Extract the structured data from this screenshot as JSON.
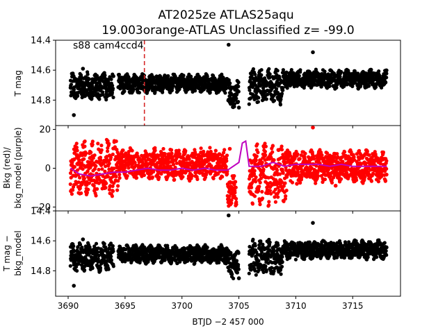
{
  "figure": {
    "title_line1": "AT2025ze  ATLAS25aqu",
    "title_line2": "19.003orange-ATLAS Unclassified z= -99.0"
  },
  "chart_data": [
    {
      "type": "scatter",
      "panel": "top",
      "ylabel": "T mag",
      "annotation": "s88 cam4ccd4",
      "ylim": [
        14.97,
        14.4
      ],
      "y_inverted": true,
      "yticks": [
        "14.4",
        "14.6",
        "14.8"
      ],
      "ytick_values": [
        14.4,
        14.6,
        14.8
      ],
      "marker_color": "#000000",
      "vline": {
        "x": 3696.7,
        "color": "#d62728",
        "style": "dashed"
      },
      "bands": [
        {
          "x0": 3690.2,
          "x1": 3694.0,
          "center": 14.71,
          "spread": 0.09
        },
        {
          "x0": 3694.4,
          "x1": 3704.0,
          "center": 14.69,
          "spread": 0.06
        },
        {
          "x0": 3704.0,
          "x1": 3705.0,
          "center": 14.76,
          "spread": 0.09
        },
        {
          "x0": 3705.9,
          "x1": 3708.9,
          "center": 14.71,
          "spread": 0.11
        },
        {
          "x0": 3708.9,
          "x1": 3718.0,
          "center": 14.66,
          "spread": 0.06
        }
      ],
      "outliers": [
        [
          3690.5,
          14.9
        ],
        [
          3691.3,
          14.59
        ],
        [
          3704.1,
          14.43
        ],
        [
          3711.5,
          14.48
        ],
        [
          3705.0,
          14.85
        ]
      ]
    },
    {
      "type": "scatter",
      "panel": "middle",
      "ylabel": "Bkg (red)/ bkg_model (purple)",
      "ylabel_line1": "Bkg (red)/",
      "ylabel_line2": "bkg_model (purple)",
      "ylim": [
        -22,
        22
      ],
      "yticks": [
        "−20",
        "0",
        "20"
      ],
      "ytick_values": [
        -20,
        0,
        20
      ],
      "marker_color": "#ff0000",
      "model_color": "#bf00bf",
      "bkg_model": {
        "x": [
          3690.2,
          3691,
          3692,
          3693,
          3694,
          3695,
          3696,
          3697,
          3698,
          3699,
          3700,
          3701,
          3702,
          3703,
          3704,
          3705,
          3705.3,
          3705.6,
          3705.9,
          3706.2,
          3707,
          3708,
          3709,
          3710,
          3711,
          3712,
          3713,
          3714,
          3715,
          3716,
          3717,
          3718
        ],
        "y": [
          0,
          -3,
          -4,
          -3,
          -2,
          -2,
          -1,
          0,
          -1,
          -1,
          0,
          -1,
          0,
          -1,
          -1,
          3,
          13,
          14,
          1,
          1,
          1,
          3,
          1,
          2,
          2,
          2,
          1,
          2,
          1,
          1,
          1,
          1
        ]
      },
      "bands": [
        {
          "x0": 3690.2,
          "x1": 3694.4,
          "center": 0,
          "spread": 14
        },
        {
          "x0": 3694.4,
          "x1": 3704.0,
          "center": 2,
          "spread": 8
        },
        {
          "x0": 3704.0,
          "x1": 3704.8,
          "center": -12,
          "spread": 8
        },
        {
          "x0": 3705.9,
          "x1": 3709.2,
          "center": -3,
          "spread": 15
        },
        {
          "x0": 3709.2,
          "x1": 3718.0,
          "center": 1,
          "spread": 8
        }
      ],
      "outliers": [
        [
          3704.2,
          10
        ],
        [
          3711.5,
          21
        ],
        [
          3710.1,
          -8
        ],
        [
          3713.5,
          -9
        ]
      ]
    },
    {
      "type": "scatter",
      "panel": "bottom",
      "ylabel": "T mag − bkg_model",
      "ylabel_line1": "T mag −",
      "ylabel_line2": "bkg_model",
      "ylim": [
        14.97,
        14.4
      ],
      "y_inverted": true,
      "yticks": [
        "14.4",
        "14.6",
        "14.8"
      ],
      "ytick_values": [
        14.4,
        14.6,
        14.8
      ],
      "marker_color": "#000000",
      "bands": [
        {
          "x0": 3690.2,
          "x1": 3694.0,
          "center": 14.71,
          "spread": 0.09
        },
        {
          "x0": 3694.4,
          "x1": 3704.0,
          "center": 14.69,
          "spread": 0.06
        },
        {
          "x0": 3704.0,
          "x1": 3705.0,
          "center": 14.76,
          "spread": 0.09
        },
        {
          "x0": 3705.9,
          "x1": 3708.9,
          "center": 14.71,
          "spread": 0.11
        },
        {
          "x0": 3708.9,
          "x1": 3718.0,
          "center": 14.66,
          "spread": 0.06
        }
      ],
      "outliers": [
        [
          3690.5,
          14.9
        ],
        [
          3691.3,
          14.59
        ],
        [
          3704.1,
          14.43
        ],
        [
          3711.5,
          14.48
        ],
        [
          3705.0,
          14.85
        ]
      ]
    }
  ],
  "x_axis": {
    "xlabel": "BTJD −2 457 000",
    "xlim": [
      3688.9,
      3719.2
    ],
    "xticks": [
      "3690",
      "3695",
      "3700",
      "3705",
      "3710",
      "3715"
    ],
    "xtick_values": [
      3690,
      3695,
      3700,
      3705,
      3710,
      3715
    ]
  }
}
